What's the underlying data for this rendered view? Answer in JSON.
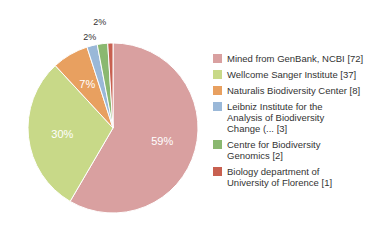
{
  "chart_data": {
    "type": "pie",
    "categories": [
      "Mined from GenBank, NCBI [72]",
      "Wellcome Sanger Institute [37]",
      "Naturalis Biodiversity Center [8]",
      "Leibniz Institute for the\nAnalysis of Biodiversity\nChange (... [3]",
      "Centre for Biodiversity\nGenomics [2]",
      "Biology department of\nUniversity of Florence [1]"
    ],
    "values": [
      59,
      30,
      7,
      2,
      2,
      1
    ],
    "value_labels": [
      "59%",
      "30%",
      "7%",
      "2%",
      "2%",
      null
    ],
    "colors": [
      "#d9a0a0",
      "#c8d988",
      "#e8a060",
      "#9ab8d8",
      "#8ab870",
      "#c86050"
    ],
    "data_labels": true,
    "legend": "right"
  }
}
